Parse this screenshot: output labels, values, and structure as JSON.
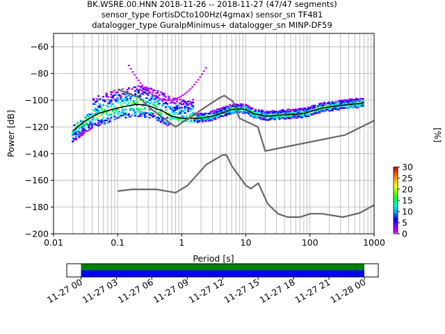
{
  "header": {
    "title_line1": "BK.WSRE.00.HNN   2018-11-26 -- 2018-11-27  (47/47 segments)",
    "title_line2": "sensor_type FortisDCto100Hz(4gmax) sensor_sn TF481",
    "title_line3": "datalogger_type GuralpMinimus+ datalogger_sn MINP-DF59"
  },
  "colorbar": {
    "label": "[%]",
    "ticks": [
      "0",
      "5",
      "10",
      "15",
      "20",
      "25",
      "30"
    ],
    "range": [
      0,
      30
    ]
  },
  "timeline": {
    "tick_labels": [
      "11-27 00",
      "11-27 03",
      "11-27 06",
      "11-27 09",
      "11-27 12",
      "11-27 15",
      "11-27 18",
      "11-27 21",
      "11-28 00"
    ],
    "colors": {
      "top": "#008000",
      "bottom": "#0000ff"
    }
  },
  "chart_data": {
    "type": "heatmap",
    "title": "BK.WSRE.00.HNN   2018-11-26 -- 2018-11-27  (47/47 segments)",
    "xlabel": "Period [s]",
    "ylabel": "Power [dB]",
    "x_scale": "log",
    "xlim": [
      0.01,
      1000
    ],
    "ylim": [
      -200,
      -50
    ],
    "xticks": [
      0.01,
      0.1,
      1,
      10,
      100,
      1000
    ],
    "xtick_labels": [
      "0.01",
      "0.1",
      "1",
      "10",
      "100",
      "1000"
    ],
    "yticks": [
      -200,
      -180,
      -160,
      -140,
      -120,
      -100,
      -80,
      -60
    ],
    "ytick_labels": [
      "−200",
      "−180",
      "−160",
      "−140",
      "−120",
      "−100",
      "−80",
      "−60"
    ],
    "grid": true,
    "series": [
      {
        "role": "median",
        "color": "#000000",
        "points": [
          [
            0.02,
            -123
          ],
          [
            0.03,
            -116
          ],
          [
            0.05,
            -110
          ],
          [
            0.08,
            -107
          ],
          [
            0.12,
            -105
          ],
          [
            0.2,
            -103
          ],
          [
            0.3,
            -104
          ],
          [
            0.5,
            -108
          ],
          [
            0.7,
            -112
          ],
          [
            1,
            -113.5
          ],
          [
            2,
            -113.5
          ],
          [
            3,
            -112
          ],
          [
            4,
            -110
          ],
          [
            6,
            -107
          ],
          [
            8,
            -106.5
          ],
          [
            10,
            -107
          ],
          [
            13,
            -110
          ],
          [
            20,
            -112
          ],
          [
            40,
            -111
          ],
          [
            80,
            -110
          ],
          [
            150,
            -106
          ],
          [
            300,
            -104
          ],
          [
            700,
            -102
          ]
        ]
      },
      {
        "role": "high-noise-model",
        "color": "#666666",
        "points": [
          [
            0.1,
            -92
          ],
          [
            0.22,
            -98
          ],
          [
            0.32,
            -106
          ],
          [
            0.8,
            -120
          ],
          [
            3.8,
            -98.5
          ],
          [
            4.6,
            -96.5
          ],
          [
            6.3,
            -101
          ],
          [
            7.9,
            -113.5
          ],
          [
            15.4,
            -120
          ],
          [
            20,
            -138
          ],
          [
            354.8,
            -126
          ],
          [
            10000,
            -91.5
          ]
        ]
      },
      {
        "role": "low-noise-model",
        "color": "#666666",
        "points": [
          [
            0.1,
            -168
          ],
          [
            0.17,
            -166.7
          ],
          [
            0.4,
            -166.7
          ],
          [
            0.8,
            -169.2
          ],
          [
            1.24,
            -163.7
          ],
          [
            2.4,
            -148.3
          ],
          [
            4.3,
            -141.1
          ],
          [
            5,
            -141.1
          ],
          [
            6,
            -149
          ],
          [
            10,
            -163.8
          ],
          [
            12,
            -166.2
          ],
          [
            15.6,
            -162.1
          ],
          [
            21.9,
            -177.5
          ],
          [
            31.6,
            -185
          ],
          [
            45,
            -187.5
          ],
          [
            70,
            -187.5
          ],
          [
            101,
            -185
          ],
          [
            154,
            -185
          ],
          [
            328,
            -187.5
          ],
          [
            600,
            -184.4
          ],
          [
            10000,
            -151.5
          ]
        ]
      }
    ],
    "noise_cloud_note": "",
    "colormap": "pqlx"
  }
}
